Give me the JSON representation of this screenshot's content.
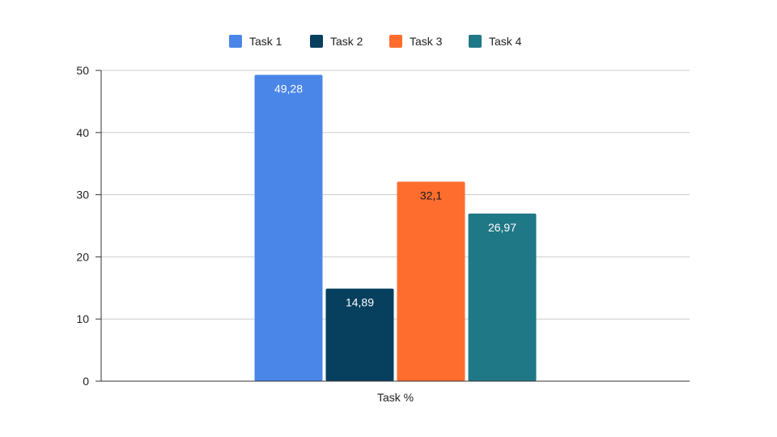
{
  "chart_data": {
    "type": "bar",
    "categories": [
      "Task %"
    ],
    "series": [
      {
        "name": "Task 1",
        "values": [
          49.28
        ],
        "label": "49,28",
        "color": "#4a86e8",
        "label_color": "#ffffff"
      },
      {
        "name": "Task 2",
        "values": [
          14.89
        ],
        "label": "14,89",
        "color": "#073f5e",
        "label_color": "#ffffff"
      },
      {
        "name": "Task 3",
        "values": [
          32.1
        ],
        "label": "32,1",
        "color": "#ff6d2e",
        "label_color": "#1a1a1a"
      },
      {
        "name": "Task 4",
        "values": [
          26.97
        ],
        "label": "26,97",
        "color": "#1f7886",
        "label_color": "#ffffff"
      }
    ],
    "xlabel": "",
    "ylabel": "",
    "ylim": [
      0,
      50
    ],
    "yticks": [
      0,
      10,
      20,
      30,
      40,
      50
    ],
    "ytick_labels": [
      "0",
      "10",
      "20",
      "30",
      "40",
      "50"
    ],
    "grid": true,
    "legend": "top-center"
  }
}
